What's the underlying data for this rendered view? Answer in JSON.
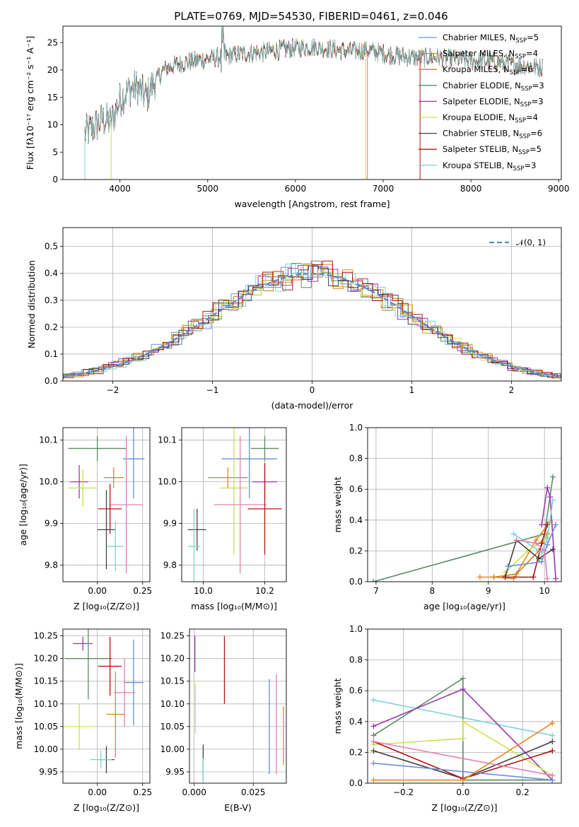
{
  "title": "PLATE=0769, MJD=54530, FIBERID=0461, z=0.046",
  "colors": {
    "Chabrier MILES": "#6a8fdc",
    "Salpeter MILES": "#e8871f",
    "Kroupa MILES": "#c9821f",
    "Chabrier ELODIE": "#5c8a63",
    "Salpeter ELODIE": "#9b36b0",
    "Kroupa ELODIE": "#cde052",
    "Chabrier STELIB": "#444444",
    "Salpeter STELIB": "#b01515",
    "Kroupa STELIB": "#7dd3d8",
    "pink": "#e67fb4",
    "normal": "#5b86cf"
  },
  "chart_data": [
    {
      "type": "line",
      "xlabel": "wavelength [Angstrom, rest frame]",
      "ylabel": "Flux [fλ10⁻¹⁷ erg cm⁻² s⁻¹ A⁻¹]",
      "xlim": [
        3350,
        9030
      ],
      "ylim": [
        0,
        28
      ],
      "xticks": [
        4000,
        5000,
        6000,
        7000,
        8000,
        9000
      ],
      "yticks": [
        0,
        5,
        10,
        15,
        20,
        25
      ],
      "legend_location": "right",
      "series": [
        {
          "name": "Chabrier MILES",
          "label": "Chabrier MILES, N",
          "sub": "SSP",
          "tail": "=5",
          "color": "#6a8fdc"
        },
        {
          "name": "Salpeter MILES",
          "label": "Salpeter MILES, N",
          "sub": "SSP",
          "tail": "=4",
          "color": "#e8871f"
        },
        {
          "name": "Kroupa MILES",
          "label": "Kroupa MILES, N",
          "sub": "SSP",
          "tail": "=6",
          "color": "#c9821f"
        },
        {
          "name": "Chabrier ELODIE",
          "label": "Chabrier ELODIE, N",
          "sub": "SSP",
          "tail": "=3",
          "color": "#5c8a63"
        },
        {
          "name": "Salpeter ELODIE",
          "label": "Salpeter ELODIE, N",
          "sub": "SSP",
          "tail": "=3",
          "color": "#9b36b0"
        },
        {
          "name": "Kroupa ELODIE",
          "label": "Kroupa ELODIE, N",
          "sub": "SSP",
          "tail": "=4",
          "color": "#cde052"
        },
        {
          "name": "Chabrier STELIB",
          "label": "Chabrier STELIB, N",
          "sub": "SSP",
          "tail": "=6",
          "color": "#444444"
        },
        {
          "name": "Salpeter STELIB",
          "label": "Salpeter STELIB, N",
          "sub": "SSP",
          "tail": "=5",
          "color": "#b01515"
        },
        {
          "name": "Kroupa STELIB",
          "label": "Kroupa STELIB, N",
          "sub": "SSP",
          "tail": "=3",
          "color": "#7dd3d8"
        }
      ],
      "continuum": {
        "x": [
          3600,
          3700,
          3800,
          3900,
          4000,
          4100,
          4200,
          4300,
          4400,
          4500,
          4600,
          4800,
          5000,
          5200,
          5400,
          5600,
          5800,
          6000,
          6200,
          6400,
          6600,
          6800,
          7000,
          7200,
          7400,
          7600,
          7800,
          8000,
          8200,
          8400,
          8600,
          8800
        ],
        "y": [
          8.5,
          9.5,
          11.0,
          10.5,
          14.5,
          16.5,
          16.8,
          15.0,
          18.0,
          20.0,
          20.8,
          21.5,
          22.0,
          22.5,
          23.0,
          23.2,
          23.6,
          24.0,
          24.2,
          23.8,
          23.4,
          23.6,
          23.0,
          22.5,
          22.2,
          22.4,
          22.0,
          21.7,
          21.6,
          21.2,
          20.8,
          20.5
        ]
      },
      "drops": [
        {
          "name": "Kroupa STELIB",
          "x": 3600
        },
        {
          "name": "Kroupa ELODIE",
          "x": 3900
        },
        {
          "name": "Kroupa ELODIE",
          "x": 6800
        },
        {
          "name": "Salpeter MILES",
          "x": 6820
        },
        {
          "name": "Salpeter STELIB",
          "x": 7420
        }
      ]
    },
    {
      "type": "histogram",
      "xlabel": "(data-model)/error",
      "ylabel": "Normed distribution",
      "xlim": [
        -2.5,
        2.5
      ],
      "ylim": [
        0,
        0.57
      ],
      "xticks": [
        -2,
        -1,
        0,
        1,
        2
      ],
      "xtick_labels": [
        "−2",
        "−1",
        "0",
        "1",
        "2"
      ],
      "yticks": [
        0.0,
        0.1,
        0.2,
        0.3,
        0.4,
        0.5
      ],
      "ytick_labels": [
        "0.0",
        "0.1",
        "0.2",
        "0.3",
        "0.4",
        "0.5"
      ],
      "grid": true,
      "bin_width": 0.1,
      "legend_location": "top-right",
      "reference": {
        "name": "𝒩(0, 1)",
        "mean": 0,
        "std": 1,
        "style": "dashed"
      }
    },
    {
      "type": "scatter",
      "xlabel": "Z [log₁₀(Z/Z⊙)]",
      "ylabel": "age  [log₁₀(age/yr)]",
      "xlim": [
        -0.19,
        0.29
      ],
      "ylim": [
        9.76,
        10.13
      ],
      "xticks": [
        0.0,
        0.25
      ],
      "xtick_labels": [
        "0.00",
        "0.25"
      ],
      "yticks": [
        9.8,
        9.9,
        10.0,
        10.1
      ],
      "ytick_labels": [
        "9.8",
        "9.9",
        "10.0",
        "10.1"
      ],
      "points": [
        {
          "c": "Chabrier ELODIE",
          "x": 0.0,
          "xerr": 0.16,
          "y": 10.08,
          "yerr": 0.03
        },
        {
          "c": "Chabrier MILES",
          "x": 0.2,
          "xerr": 0.06,
          "y": 10.055,
          "yerr": 0.095
        },
        {
          "c": "Salpeter MILES",
          "x": 0.09,
          "xerr": 0.055,
          "y": 10.01,
          "yerr": 0.025
        },
        {
          "c": "Salpeter ELODIE",
          "x": -0.1,
          "xerr": 0.05,
          "y": 10.0,
          "yerr": 0.04
        },
        {
          "c": "Kroupa ELODIE",
          "x": -0.08,
          "xerr": 0.08,
          "y": 9.985,
          "yerr": 0.045
        },
        {
          "c": "pink",
          "x": 0.16,
          "xerr": 0.09,
          "y": 9.945,
          "yerr": 0.165
        },
        {
          "c": "Salpeter STELIB",
          "x": 0.07,
          "xerr": 0.065,
          "y": 9.935,
          "yerr": 0.06
        },
        {
          "c": "Chabrier STELIB",
          "x": 0.05,
          "xerr": 0.05,
          "y": 9.885,
          "yerr": 0.095
        },
        {
          "c": "Kroupa STELIB",
          "x": 0.1,
          "xerr": 0.045,
          "y": 9.845,
          "yerr": 0.06
        }
      ]
    },
    {
      "type": "scatter",
      "xlabel": "mass [log₁₀(M/M⊙)]",
      "ylabel": "",
      "xlim": [
        9.93,
        10.27
      ],
      "ylim": [
        9.76,
        10.13
      ],
      "xticks": [
        10.0,
        10.2
      ],
      "xtick_labels": [
        "10.0",
        "10.2"
      ],
      "yticks": [
        9.8,
        9.9,
        10.0,
        10.1
      ],
      "ytick_labels": [
        "9.8",
        "9.9",
        "10.0",
        "10.1"
      ],
      "points": [
        {
          "c": "Chabrier ELODIE",
          "x": 10.2,
          "xerr": 0.045,
          "y": 10.08,
          "yerr": 0.03
        },
        {
          "c": "Chabrier MILES",
          "x": 10.15,
          "xerr": 0.09,
          "y": 10.055,
          "yerr": 0.095
        },
        {
          "c": "Salpeter MILES",
          "x": 10.08,
          "xerr": 0.065,
          "y": 10.01,
          "yerr": 0.025
        },
        {
          "c": "Salpeter ELODIE",
          "x": 10.2,
          "xerr": 0.04,
          "y": 10.0,
          "yerr": 0.04
        },
        {
          "c": "Kroupa ELODIE",
          "x": 10.1,
          "xerr": 0.045,
          "y": 9.985,
          "yerr": 0.16
        },
        {
          "c": "pink",
          "x": 10.12,
          "xerr": 0.085,
          "y": 9.945,
          "yerr": 0.165
        },
        {
          "c": "Salpeter STELIB",
          "x": 10.2,
          "xerr": 0.055,
          "y": 9.935,
          "yerr": 0.11
        },
        {
          "c": "Chabrier STELIB",
          "x": 9.98,
          "xerr": 0.03,
          "y": 9.885,
          "yerr": 0.05
        },
        {
          "c": "Kroupa STELIB",
          "x": 9.97,
          "xerr": 0.02,
          "y": 9.845,
          "yerr": 0.09
        }
      ]
    },
    {
      "type": "line",
      "xlabel": "age  [log₁₀(age/yr)]",
      "ylabel": "mass weight",
      "xlim": [
        6.85,
        10.3
      ],
      "ylim": [
        0,
        1
      ],
      "xticks": [
        7,
        8,
        9,
        10
      ],
      "xtick_labels": [
        "7",
        "8",
        "9",
        "10"
      ],
      "yticks": [
        0.0,
        0.2,
        0.4,
        0.6,
        0.8,
        1.0
      ],
      "ytick_labels": [
        "0.0",
        "0.2",
        "0.4",
        "0.6",
        "0.8",
        "1.0"
      ],
      "grid": true,
      "series": [
        {
          "c": "Chabrier ELODIE",
          "x": [
            6.95,
            10.0,
            10.15
          ],
          "y": [
            0.0,
            0.31,
            0.68
          ]
        },
        {
          "c": "Salpeter MILES",
          "x": [
            8.85,
            9.1,
            9.45,
            9.85,
            10.1
          ],
          "y": [
            0.03,
            0.03,
            0.02,
            0.27,
            0.39
          ]
        },
        {
          "c": "Kroupa MILES",
          "x": [
            9.1,
            9.5,
            9.9,
            10.05
          ],
          "y": [
            0.03,
            0.05,
            0.2,
            0.31
          ]
        },
        {
          "c": "Salpeter ELODIE",
          "x": [
            9.95,
            10.05,
            10.1,
            10.2
          ],
          "y": [
            0.37,
            0.61,
            0.55,
            0.02
          ]
        },
        {
          "c": "Kroupa ELODIE",
          "x": [
            9.3,
            9.7,
            9.95,
            10.05
          ],
          "y": [
            0.06,
            0.2,
            0.26,
            0.29
          ]
        },
        {
          "c": "Chabrier STELIB",
          "x": [
            9.3,
            9.5,
            9.9,
            10.15
          ],
          "y": [
            0.03,
            0.27,
            0.15,
            0.21
          ]
        },
        {
          "c": "Salpeter STELIB",
          "x": [
            9.3,
            9.8,
            9.95,
            10.05
          ],
          "y": [
            0.03,
            0.03,
            0.25,
            0.37
          ]
        },
        {
          "c": "Kroupa STELIB",
          "x": [
            9.45,
            9.95,
            10.05,
            10.15
          ],
          "y": [
            0.31,
            0.19,
            0.28,
            0.53
          ]
        },
        {
          "c": "Chabrier MILES",
          "x": [
            9.35,
            9.95,
            10.05,
            10.2
          ],
          "y": [
            0.1,
            0.13,
            0.24,
            0.37
          ]
        },
        {
          "c": "pink",
          "x": [
            9.5,
            9.85,
            10.0,
            10.05
          ],
          "y": [
            0.27,
            0.25,
            0.2,
            0.02
          ]
        }
      ]
    },
    {
      "type": "scatter",
      "xlabel": "Z [log₁₀(Z/Z⊙)]",
      "ylabel": "mass [log₁₀(M/M⊙)]",
      "xlim": [
        -0.19,
        0.29
      ],
      "ylim": [
        9.925,
        10.265
      ],
      "xticks": [
        0.0,
        0.25
      ],
      "xtick_labels": [
        "0.00",
        "0.25"
      ],
      "yticks": [
        9.95,
        10.0,
        10.05,
        10.1,
        10.15,
        10.2,
        10.25
      ],
      "ytick_labels": [
        "9.95",
        "10.00",
        "10.05",
        "10.10",
        "10.15",
        "10.20",
        "10.25"
      ],
      "points": [
        {
          "c": "Salpeter ELODIE",
          "x": -0.08,
          "xerr": 0.055,
          "y": 10.233,
          "yerr": 0.015
        },
        {
          "c": "Chabrier ELODIE",
          "x": -0.05,
          "xerr": 0.13,
          "y": 10.2,
          "yerr": 0.09
        },
        {
          "c": "Salpeter STELIB",
          "x": 0.07,
          "xerr": 0.065,
          "y": 10.183,
          "yerr": 0.065
        },
        {
          "c": "Chabrier MILES",
          "x": 0.2,
          "xerr": 0.055,
          "y": 10.147,
          "yerr": 0.095
        },
        {
          "c": "pink",
          "x": 0.15,
          "xerr": 0.06,
          "y": 10.125,
          "yerr": 0.075
        },
        {
          "c": "Salpeter MILES",
          "x": 0.1,
          "xerr": 0.05,
          "y": 10.077,
          "yerr": 0.095
        },
        {
          "c": "Kroupa ELODIE",
          "x": -0.1,
          "xerr": 0.08,
          "y": 10.05,
          "yerr": 0.05
        },
        {
          "c": "Chabrier STELIB",
          "x": 0.05,
          "xerr": 0.045,
          "y": 9.977,
          "yerr": 0.03
        },
        {
          "c": "Kroupa STELIB",
          "x": 0.02,
          "xerr": 0.06,
          "y": 9.977,
          "yerr": 0.02
        }
      ]
    },
    {
      "type": "scatter",
      "xlabel": "E(B-V)",
      "ylabel": "",
      "xlim": [
        -0.002,
        0.039
      ],
      "ylim": [
        9.925,
        10.265
      ],
      "xticks": [
        0.0,
        0.025
      ],
      "xtick_labels": [
        "0.000",
        "0.025"
      ],
      "yticks": [
        9.95,
        10.0,
        10.05,
        10.1,
        10.15,
        10.2,
        10.25
      ],
      "ytick_labels": [
        "9.95",
        "10.00",
        "10.05",
        "10.10",
        "10.15",
        "10.20",
        "10.25"
      ],
      "points": [
        {
          "c": "Salpeter ELODIE",
          "x": 0.0003,
          "xerr": 0,
          "y": 10.21,
          "yerr": 0.04
        },
        {
          "c": "Kroupa ELODIE",
          "x": 0.0005,
          "xerr": 0,
          "y": 10.09,
          "yerr": 0.055
        },
        {
          "c": "Salpeter STELIB",
          "x": 0.0128,
          "xerr": 0,
          "y": 10.175,
          "yerr": 0.075
        },
        {
          "c": "Chabrier MILES",
          "x": 0.0318,
          "xerr": 0,
          "y": 10.05,
          "yerr": 0.105
        },
        {
          "c": "pink",
          "x": 0.0348,
          "xerr": 0,
          "y": 10.055,
          "yerr": 0.11
        },
        {
          "c": "Salpeter MILES",
          "x": 0.0378,
          "xerr": 0,
          "y": 10.03,
          "yerr": 0.065
        },
        {
          "c": "Chabrier STELIB",
          "x": 0.0038,
          "xerr": 0,
          "y": 9.97,
          "yerr": 0.04
        },
        {
          "c": "Kroupa STELIB",
          "x": 0.0038,
          "xerr": 0,
          "y": 9.95,
          "yerr": 0.03
        }
      ]
    },
    {
      "type": "line",
      "xlabel": "Z [log₁₀(Z/Z⊙)]",
      "ylabel": "mass weight",
      "xlim": [
        -0.32,
        0.33
      ],
      "ylim": [
        0,
        1
      ],
      "xticks": [
        -0.2,
        0.0,
        0.2
      ],
      "xtick_labels": [
        "−0.2",
        "0.0",
        "0.2"
      ],
      "yticks": [
        0.0,
        0.2,
        0.4,
        0.6,
        0.8,
        1.0
      ],
      "ytick_labels": [
        "0.0",
        "0.2",
        "0.4",
        "0.6",
        "0.8",
        "1.0"
      ],
      "grid": true,
      "series": [
        {
          "c": "Kroupa STELIB",
          "x": [
            -0.3,
            0.3
          ],
          "y": [
            0.54,
            0.31
          ]
        },
        {
          "c": "Chabrier ELODIE",
          "x": [
            -0.3,
            0.0,
            0.0,
            0.3
          ],
          "y": [
            0.31,
            0.68,
            0.02,
            0.02
          ]
        },
        {
          "c": "Salpeter ELODIE",
          "x": [
            -0.3,
            0.0,
            0.3
          ],
          "y": [
            0.37,
            0.61,
            0.02
          ]
        },
        {
          "c": "Kroupa ELODIE",
          "x": [
            -0.3,
            0.0,
            0.0,
            0.3
          ],
          "y": [
            0.25,
            0.29,
            0.4,
            0.05
          ]
        },
        {
          "c": "Chabrier STELIB",
          "x": [
            -0.3,
            0.0,
            0.3
          ],
          "y": [
            0.21,
            0.03,
            0.27
          ]
        },
        {
          "c": "Salpeter STELIB",
          "x": [
            -0.3,
            0.0,
            0.3
          ],
          "y": [
            0.27,
            0.03,
            0.21
          ]
        },
        {
          "c": "pink",
          "x": [
            -0.3,
            0.3
          ],
          "y": [
            0.27,
            0.05
          ]
        },
        {
          "c": "Chabrier MILES",
          "x": [
            -0.3,
            0.3
          ],
          "y": [
            0.13,
            0.02
          ]
        },
        {
          "c": "Salpeter MILES",
          "x": [
            -0.3,
            0.0,
            0.3
          ],
          "y": [
            0.02,
            0.02,
            0.39
          ]
        }
      ]
    }
  ]
}
